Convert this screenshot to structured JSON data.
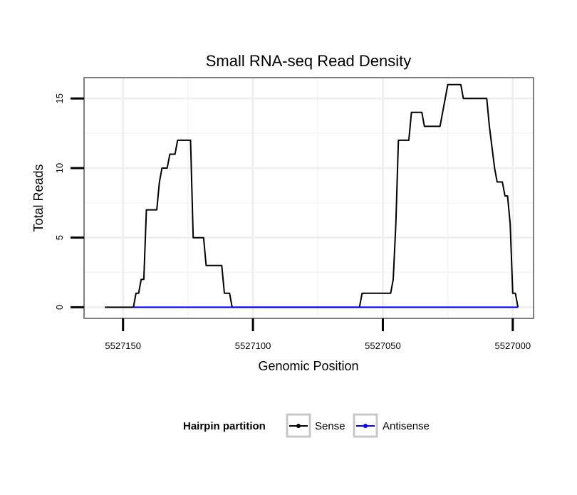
{
  "chart_data": {
    "type": "line",
    "title": "Small RNA-seq Read Density",
    "xlabel": "Genomic Position",
    "ylabel": "Total Reads",
    "x_reversed": true,
    "xlim": [
      5527165,
      5526992
    ],
    "ylim": [
      -0.8,
      16.5
    ],
    "x_ticks": [
      5527150,
      5527100,
      5527050,
      5527000
    ],
    "x_tick_labels": [
      "5527150",
      "5527100",
      "5527050",
      "5527000"
    ],
    "y_ticks": [
      0,
      5,
      10,
      15
    ],
    "y_tick_labels": [
      "0",
      "5",
      "10",
      "15"
    ],
    "grid": true,
    "legend": {
      "title": "Hairpin partition",
      "position": "bottom",
      "entries": [
        {
          "name": "Sense",
          "color": "#000000"
        },
        {
          "name": "Antisense",
          "color": "#0000ff"
        }
      ]
    },
    "series": [
      {
        "name": "Sense",
        "color": "#000000",
        "points": [
          [
            5527157,
            0
          ],
          [
            5527146,
            0
          ],
          [
            5527145,
            1
          ],
          [
            5527144,
            1
          ],
          [
            5527143,
            2
          ],
          [
            5527142,
            2
          ],
          [
            5527141,
            7
          ],
          [
            5527137,
            7
          ],
          [
            5527136,
            9
          ],
          [
            5527135,
            10
          ],
          [
            5527133,
            10
          ],
          [
            5527132,
            11
          ],
          [
            5527130,
            11
          ],
          [
            5527129,
            12
          ],
          [
            5527124,
            12
          ],
          [
            5527123,
            5
          ],
          [
            5527119,
            5
          ],
          [
            5527118,
            3
          ],
          [
            5527112,
            3
          ],
          [
            5527111,
            1
          ],
          [
            5527109,
            1
          ],
          [
            5527108,
            0
          ],
          [
            5527059,
            0
          ],
          [
            5527058,
            1
          ],
          [
            5527047,
            1
          ],
          [
            5527046,
            2
          ],
          [
            5527045,
            6
          ],
          [
            5527044,
            12
          ],
          [
            5527040,
            12
          ],
          [
            5527039,
            14
          ],
          [
            5527035,
            14
          ],
          [
            5527034,
            13
          ],
          [
            5527028,
            13
          ],
          [
            5527025,
            16
          ],
          [
            5527020,
            16
          ],
          [
            5527019,
            15
          ],
          [
            5527010,
            15
          ],
          [
            5527009,
            13
          ],
          [
            5527007,
            10
          ],
          [
            5527006,
            9
          ],
          [
            5527004,
            9
          ],
          [
            5527003,
            8
          ],
          [
            5527002,
            8
          ],
          [
            5527001,
            6
          ],
          [
            5527000,
            1
          ],
          [
            5526999,
            1
          ],
          [
            5526998,
            0
          ]
        ]
      },
      {
        "name": "Antisense",
        "color": "#0000ff",
        "points": [
          [
            5527146,
            0
          ],
          [
            5526998,
            0
          ]
        ]
      }
    ]
  }
}
